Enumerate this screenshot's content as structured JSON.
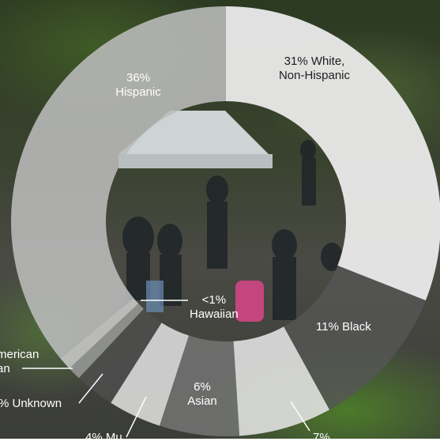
{
  "chart_data": {
    "type": "donut",
    "title": "",
    "series": [
      {
        "values": [
          31,
          11,
          7,
          6,
          4,
          3,
          1,
          1,
          36
        ],
        "labels": [
          "31% White,\nNon-Hispanic",
          "11% Black",
          "7%",
          "6%\nAsian",
          "4% Mu...",
          "% Unknown",
          "merican\nan",
          "<1%\nHawaiian",
          "36%\nHispanic"
        ],
        "colors": [
          "#ececec",
          "#555555",
          "#e1e1e1",
          "#767676",
          "#dadada",
          "#4e4e4e",
          "#9a9a9a",
          "#c6c6c6",
          "#bcbcbc"
        ],
        "opacities": [
          0.94,
          0.82,
          0.9,
          0.82,
          0.9,
          0.82,
          0.85,
          0.9,
          0.88
        ]
      }
    ],
    "center": [
      286,
      280
    ],
    "radii": {
      "outer": 272,
      "inner": 152
    },
    "start_angle": 0,
    "labels": {
      "white": "31% White,\nNon-Hispanic",
      "black": "11% Black",
      "seven": "7%",
      "asian": "6%\nAsian",
      "multi": "4% Mu...",
      "unknown": "% Unknown",
      "american": "merican\nan",
      "hawaiian": "<1%\nHawaiian",
      "hispanic": "36%\nHispanic"
    }
  }
}
